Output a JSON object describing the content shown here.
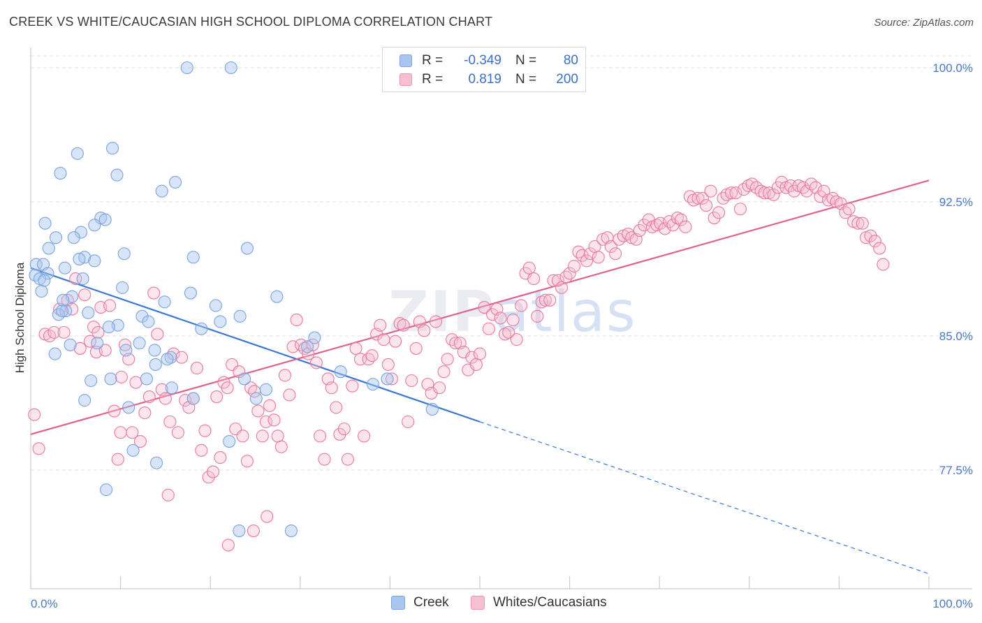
{
  "header": {
    "title": "CREEK VS WHITE/CAUCASIAN HIGH SCHOOL DIPLOMA CORRELATION CHART",
    "source": "Source: ZipAtlas.com"
  },
  "watermark": {
    "zip": "ZIP",
    "atlas": "atlas"
  },
  "legend": {
    "rows": [
      {
        "r_label": "R =",
        "r_value": "-0.349",
        "n_label": "N =",
        "n_value": "80",
        "color": "#a9c6f0",
        "border": "#7aa3e0"
      },
      {
        "r_label": "R =",
        "r_value": "0.819",
        "n_label": "N =",
        "n_value": "200",
        "color": "#f7bfd0",
        "border": "#ec93b0"
      }
    ]
  },
  "bottom_legend": {
    "items": [
      {
        "label": "Creek",
        "color": "#a9c6f0",
        "border": "#7aa3e0"
      },
      {
        "label": "Whites/Caucasians",
        "color": "#f7bfd0",
        "border": "#ec93b0"
      }
    ]
  },
  "chart_data": {
    "type": "scatter",
    "title": "CREEK VS WHITE/CAUCASIAN HIGH SCHOOL DIPLOMA CORRELATION CHART",
    "ylabel": "High School Diploma",
    "xlabel": "",
    "xlim": [
      0,
      100
    ],
    "ylim": [
      71.0,
      101.5
    ],
    "x_tick_labels": [
      "0.0%",
      "100.0%"
    ],
    "y_ticks": [
      77.5,
      85.0,
      92.5,
      100.0
    ],
    "y_tick_labels": [
      "77.5%",
      "85.0%",
      "92.5%",
      "100.0%"
    ],
    "grid": true,
    "legend_position": "top-center",
    "series": [
      {
        "name": "Creek",
        "color": "#7aa3e0",
        "fill": "rgba(169,198,240,0.45)",
        "trend": {
          "x0": 0,
          "y0": 88.8,
          "x1": 50,
          "y1": 80.2,
          "x_end": 100,
          "y_end": 71.7
        },
        "points": [
          [
            17.4,
            100.0
          ],
          [
            22.3,
            100.0
          ],
          [
            9.1,
            95.5
          ],
          [
            5.2,
            95.2
          ],
          [
            3.3,
            94.1
          ],
          [
            9.6,
            94.0
          ],
          [
            16.1,
            93.6
          ],
          [
            14.6,
            93.1
          ],
          [
            7.8,
            91.6
          ],
          [
            8.3,
            91.5
          ],
          [
            1.6,
            91.3
          ],
          [
            7.1,
            91.2
          ],
          [
            5.6,
            90.8
          ],
          [
            2.8,
            90.5
          ],
          [
            4.8,
            90.5
          ],
          [
            2.0,
            89.9
          ],
          [
            24.1,
            89.9
          ],
          [
            10.4,
            89.6
          ],
          [
            6.0,
            89.4
          ],
          [
            18.1,
            89.4
          ],
          [
            5.4,
            89.3
          ],
          [
            7.1,
            89.2
          ],
          [
            0.6,
            89.0
          ],
          [
            1.4,
            89.0
          ],
          [
            3.8,
            88.8
          ],
          [
            1.9,
            88.5
          ],
          [
            0.5,
            88.4
          ],
          [
            5.8,
            88.2
          ],
          [
            1.0,
            88.2
          ],
          [
            1.5,
            88.1
          ],
          [
            10.2,
            87.7
          ],
          [
            1.2,
            87.5
          ],
          [
            27.4,
            87.2
          ],
          [
            4.6,
            87.2
          ],
          [
            3.6,
            87.0
          ],
          [
            14.9,
            86.9
          ],
          [
            20.6,
            86.7
          ],
          [
            3.9,
            86.4
          ],
          [
            6.4,
            86.3
          ],
          [
            3.1,
            86.2
          ],
          [
            23.3,
            86.1
          ],
          [
            12.4,
            86.1
          ],
          [
            13.1,
            85.8
          ],
          [
            21.1,
            85.8
          ],
          [
            9.7,
            85.6
          ],
          [
            8.7,
            85.5
          ],
          [
            19.0,
            85.4
          ],
          [
            31.6,
            84.9
          ],
          [
            12.1,
            84.6
          ],
          [
            7.4,
            84.6
          ],
          [
            4.4,
            84.5
          ],
          [
            30.8,
            84.4
          ],
          [
            10.6,
            84.2
          ],
          [
            13.8,
            84.2
          ],
          [
            2.7,
            84.0
          ],
          [
            15.6,
            83.8
          ],
          [
            15.2,
            83.7
          ],
          [
            13.9,
            83.4
          ],
          [
            12.9,
            82.6
          ],
          [
            8.9,
            82.6
          ],
          [
            23.8,
            82.6
          ],
          [
            39.7,
            82.6
          ],
          [
            6.7,
            82.5
          ],
          [
            15.7,
            82.1
          ],
          [
            38.1,
            82.3
          ],
          [
            25.1,
            81.5
          ],
          [
            18.1,
            81.5
          ],
          [
            6.0,
            81.4
          ],
          [
            10.9,
            81.0
          ],
          [
            44.7,
            80.9
          ],
          [
            22.1,
            79.1
          ],
          [
            11.4,
            78.6
          ],
          [
            8.4,
            76.4
          ],
          [
            23.2,
            74.1
          ],
          [
            29.0,
            74.1
          ],
          [
            14.0,
            77.9
          ],
          [
            3.5,
            86.4
          ],
          [
            17.8,
            87.4
          ],
          [
            26.2,
            82.0
          ],
          [
            34.5,
            83.0
          ]
        ]
      },
      {
        "name": "Whites/Caucasians",
        "color": "#e8799c",
        "fill": "rgba(247,191,208,0.40)",
        "trend": {
          "x0": 0,
          "y0": 79.5,
          "x1": 100,
          "y1": 93.7
        },
        "points": [
          [
            0.4,
            80.6
          ],
          [
            0.9,
            78.7
          ],
          [
            1.6,
            85.1
          ],
          [
            2.1,
            85.0
          ],
          [
            2.6,
            85.2
          ],
          [
            3.2,
            86.5
          ],
          [
            3.7,
            85.2
          ],
          [
            4.1,
            87.0
          ],
          [
            4.6,
            86.5
          ],
          [
            5.0,
            88.2
          ],
          [
            5.5,
            84.3
          ],
          [
            6.0,
            87.3
          ],
          [
            6.6,
            84.7
          ],
          [
            7.0,
            85.5
          ],
          [
            7.3,
            84.1
          ],
          [
            7.8,
            86.6
          ],
          [
            8.3,
            84.2
          ],
          [
            8.8,
            86.7
          ],
          [
            9.3,
            80.8
          ],
          [
            9.7,
            78.1
          ],
          [
            10.1,
            82.7
          ],
          [
            10.5,
            84.5
          ],
          [
            10.9,
            83.7
          ],
          [
            11.3,
            79.6
          ],
          [
            11.7,
            82.4
          ],
          [
            12.2,
            79.1
          ],
          [
            12.7,
            80.7
          ],
          [
            13.2,
            81.6
          ],
          [
            13.7,
            87.4
          ],
          [
            14.1,
            85.1
          ],
          [
            14.6,
            82.0
          ],
          [
            15.0,
            81.5
          ],
          [
            15.5,
            80.2
          ],
          [
            15.9,
            84.0
          ],
          [
            16.4,
            79.6
          ],
          [
            16.8,
            83.8
          ],
          [
            17.2,
            81.4
          ],
          [
            17.6,
            81.0
          ],
          [
            18.1,
            81.5
          ],
          [
            18.5,
            83.2
          ],
          [
            19.0,
            78.6
          ],
          [
            19.4,
            79.7
          ],
          [
            19.8,
            77.1
          ],
          [
            20.3,
            77.4
          ],
          [
            20.7,
            81.6
          ],
          [
            21.1,
            78.2
          ],
          [
            21.5,
            82.4
          ],
          [
            21.9,
            82.1
          ],
          [
            22.4,
            83.4
          ],
          [
            22.8,
            79.8
          ],
          [
            23.2,
            83.0
          ],
          [
            23.6,
            79.4
          ],
          [
            24.1,
            78.0
          ],
          [
            24.5,
            82.1
          ],
          [
            24.9,
            81.9
          ],
          [
            25.3,
            80.8
          ],
          [
            25.8,
            79.4
          ],
          [
            26.2,
            80.2
          ],
          [
            26.6,
            81.1
          ],
          [
            27.1,
            80.3
          ],
          [
            27.5,
            79.4
          ],
          [
            27.9,
            78.8
          ],
          [
            28.3,
            82.8
          ],
          [
            28.8,
            81.7
          ],
          [
            29.2,
            84.4
          ],
          [
            29.6,
            85.9
          ],
          [
            30.1,
            84.5
          ],
          [
            30.5,
            84.3
          ],
          [
            30.9,
            84.0
          ],
          [
            31.4,
            84.5
          ],
          [
            31.8,
            83.5
          ],
          [
            32.2,
            79.4
          ],
          [
            32.7,
            78.1
          ],
          [
            33.1,
            82.6
          ],
          [
            33.5,
            82.1
          ],
          [
            34.0,
            81.0
          ],
          [
            34.4,
            79.5
          ],
          [
            34.9,
            79.8
          ],
          [
            35.3,
            78.1
          ],
          [
            35.8,
            82.2
          ],
          [
            36.2,
            84.3
          ],
          [
            36.7,
            83.7
          ],
          [
            37.1,
            79.4
          ],
          [
            37.6,
            83.7
          ],
          [
            38.0,
            83.9
          ],
          [
            38.5,
            85.1
          ],
          [
            38.9,
            85.6
          ],
          [
            39.3,
            84.8
          ],
          [
            39.8,
            83.4
          ],
          [
            40.2,
            82.6
          ],
          [
            40.6,
            84.7
          ],
          [
            41.1,
            85.7
          ],
          [
            41.5,
            85.6
          ],
          [
            42.0,
            80.2
          ],
          [
            42.4,
            82.5
          ],
          [
            42.9,
            84.3
          ],
          [
            43.3,
            85.8
          ],
          [
            43.8,
            85.3
          ],
          [
            44.2,
            82.3
          ],
          [
            44.6,
            81.8
          ],
          [
            45.1,
            85.8
          ],
          [
            45.5,
            82.1
          ],
          [
            46.0,
            83.0
          ],
          [
            46.4,
            83.7
          ],
          [
            46.9,
            84.8
          ],
          [
            47.3,
            84.6
          ],
          [
            47.8,
            84.6
          ],
          [
            48.2,
            84.1
          ],
          [
            48.7,
            83.1
          ],
          [
            49.1,
            83.8
          ],
          [
            49.6,
            83.4
          ],
          [
            50.0,
            84.0
          ],
          [
            50.5,
            86.6
          ],
          [
            51.0,
            85.4
          ],
          [
            51.4,
            86.2
          ],
          [
            51.9,
            86.5
          ],
          [
            52.3,
            86.0
          ],
          [
            52.8,
            85.1
          ],
          [
            53.2,
            85.2
          ],
          [
            53.7,
            85.9
          ],
          [
            54.1,
            84.8
          ],
          [
            54.6,
            86.7
          ],
          [
            55.1,
            88.5
          ],
          [
            55.5,
            88.8
          ],
          [
            56.0,
            88.2
          ],
          [
            56.4,
            86.1
          ],
          [
            56.9,
            86.9
          ],
          [
            57.3,
            87.0
          ],
          [
            57.8,
            87.0
          ],
          [
            58.2,
            88.1
          ],
          [
            58.7,
            88.1
          ],
          [
            59.1,
            87.7
          ],
          [
            59.6,
            88.3
          ],
          [
            60.0,
            88.5
          ],
          [
            60.5,
            88.9
          ],
          [
            61.0,
            89.7
          ],
          [
            61.4,
            89.5
          ],
          [
            61.9,
            89.2
          ],
          [
            62.3,
            89.6
          ],
          [
            62.8,
            90.0
          ],
          [
            63.2,
            89.4
          ],
          [
            63.7,
            90.4
          ],
          [
            64.2,
            90.5
          ],
          [
            64.6,
            90.0
          ],
          [
            65.1,
            89.6
          ],
          [
            65.5,
            90.4
          ],
          [
            66.0,
            90.6
          ],
          [
            66.5,
            90.7
          ],
          [
            66.9,
            90.5
          ],
          [
            67.4,
            90.4
          ],
          [
            67.8,
            90.9
          ],
          [
            68.3,
            91.2
          ],
          [
            68.8,
            91.5
          ],
          [
            69.2,
            91.1
          ],
          [
            69.7,
            91.2
          ],
          [
            70.1,
            91.3
          ],
          [
            70.6,
            91.0
          ],
          [
            71.1,
            91.4
          ],
          [
            71.5,
            91.2
          ],
          [
            72.0,
            91.6
          ],
          [
            72.4,
            91.5
          ],
          [
            72.9,
            91.1
          ],
          [
            73.4,
            92.8
          ],
          [
            73.8,
            92.6
          ],
          [
            74.3,
            92.7
          ],
          [
            74.8,
            92.7
          ],
          [
            75.2,
            92.3
          ],
          [
            75.7,
            93.1
          ],
          [
            76.1,
            91.6
          ],
          [
            76.6,
            91.9
          ],
          [
            77.1,
            92.7
          ],
          [
            77.5,
            92.9
          ],
          [
            78.0,
            93.0
          ],
          [
            78.5,
            93.0
          ],
          [
            79.0,
            92.1
          ],
          [
            79.4,
            93.2
          ],
          [
            79.9,
            93.4
          ],
          [
            80.3,
            93.5
          ],
          [
            80.8,
            93.3
          ],
          [
            81.3,
            93.1
          ],
          [
            81.7,
            93.0
          ],
          [
            82.2,
            93.0
          ],
          [
            82.7,
            92.9
          ],
          [
            83.2,
            93.3
          ],
          [
            83.6,
            93.6
          ],
          [
            84.1,
            93.3
          ],
          [
            84.6,
            93.4
          ],
          [
            85.0,
            93.1
          ],
          [
            85.5,
            93.4
          ],
          [
            86.0,
            93.3
          ],
          [
            86.4,
            93.1
          ],
          [
            86.9,
            93.5
          ],
          [
            87.4,
            93.3
          ],
          [
            87.9,
            92.8
          ],
          [
            88.3,
            93.1
          ],
          [
            88.8,
            92.6
          ],
          [
            89.3,
            92.7
          ],
          [
            89.7,
            92.5
          ],
          [
            90.2,
            92.4
          ],
          [
            90.7,
            91.9
          ],
          [
            91.1,
            92.1
          ],
          [
            91.6,
            91.4
          ],
          [
            92.1,
            91.3
          ],
          [
            92.6,
            91.3
          ],
          [
            93.0,
            90.5
          ],
          [
            93.5,
            90.6
          ],
          [
            94.0,
            90.3
          ],
          [
            94.5,
            89.9
          ],
          [
            94.9,
            89.0
          ],
          [
            10.0,
            79.6
          ],
          [
            7.5,
            85.2
          ],
          [
            15.3,
            76.1
          ],
          [
            26.3,
            74.9
          ],
          [
            24.8,
            74.1
          ],
          [
            22.0,
            73.3
          ]
        ]
      }
    ]
  }
}
